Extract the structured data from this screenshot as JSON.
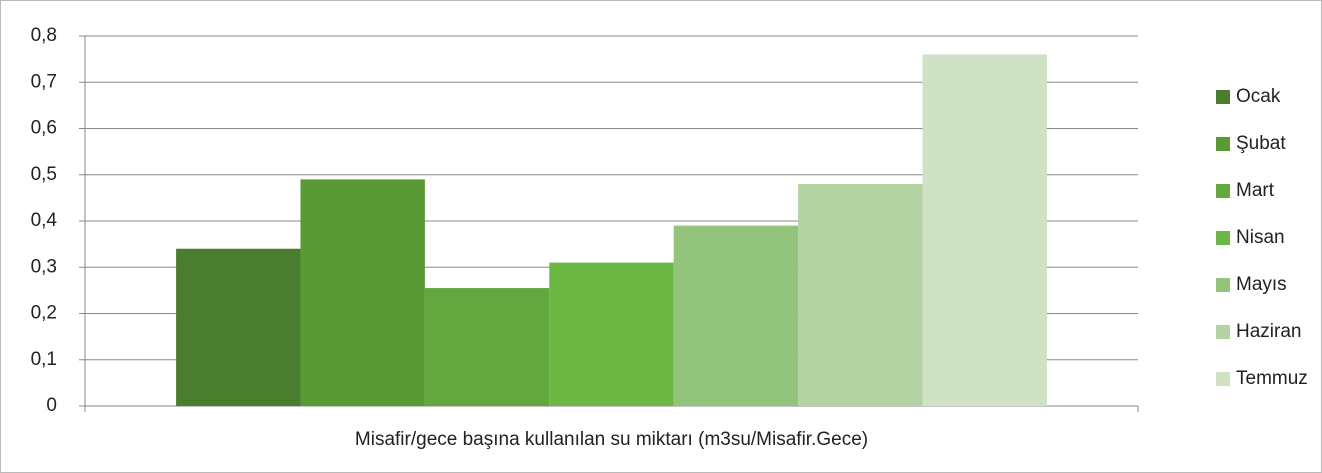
{
  "chart_data": {
    "type": "bar",
    "categories": [
      "Misafir/gece başına kullanılan su miktarı (m3su/Misafir.Gece)"
    ],
    "series": [
      {
        "name": "Ocak",
        "color": "#4a7d2e",
        "values": [
          0.34
        ]
      },
      {
        "name": "Şubat",
        "color": "#5a9a35",
        "values": [
          0.49
        ]
      },
      {
        "name": "Mart",
        "color": "#63a83f",
        "values": [
          0.255
        ]
      },
      {
        "name": "Nisan",
        "color": "#6cb744",
        "values": [
          0.31
        ]
      },
      {
        "name": "Mayıs",
        "color": "#93c47b",
        "values": [
          0.39
        ]
      },
      {
        "name": "Haziran",
        "color": "#b3d3a2",
        "values": [
          0.48
        ]
      },
      {
        "name": "Temmuz",
        "color": "#cfe3c4",
        "values": [
          0.76
        ]
      }
    ],
    "ylim": [
      0,
      0.8
    ],
    "yticks": [
      0,
      {
        "value": 0.1,
        "label": "0,1"
      },
      {
        "value": 0.2,
        "label": "0,2"
      },
      {
        "value": 0.3,
        "label": "0,3"
      },
      {
        "value": 0.4,
        "label": "0,4"
      },
      {
        "value": 0.5,
        "label": "0,5"
      },
      {
        "value": 0.6,
        "label": "0,6"
      },
      {
        "value": 0.7,
        "label": "0,7"
      },
      {
        "value": 0.8,
        "label": "0,8"
      }
    ],
    "grid": true,
    "legend": "right"
  }
}
